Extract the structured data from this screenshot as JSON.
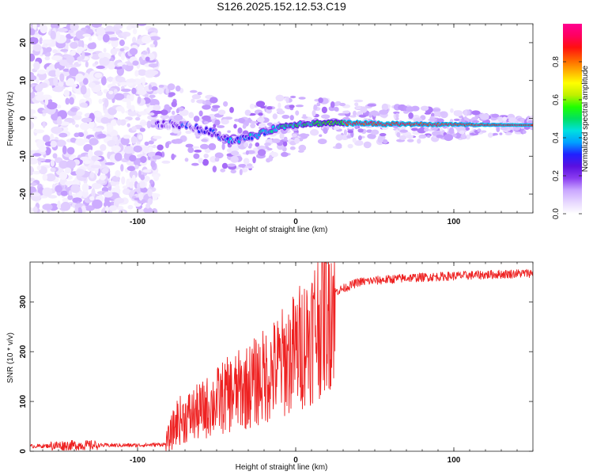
{
  "figure": {
    "title": "S126.2025.152.12.53.C19"
  },
  "chart_data": [
    {
      "type": "heatmap",
      "xlabel": "Height of straight line (km)",
      "ylabel": "Frequency (Hz)",
      "xlim": [
        -168,
        150
      ],
      "ylim": [
        -25,
        25
      ],
      "xticks": [
        -100,
        0,
        100
      ],
      "yticks": [
        -20,
        -10,
        0,
        10,
        20
      ],
      "colorbar": {
        "label": "Normalized spectral amplitude",
        "range": [
          0.0,
          1.0
        ],
        "ticks": [
          0.0,
          0.2,
          0.4,
          0.6,
          0.8
        ],
        "tick_labels": [
          "0.0",
          "0.2",
          "0.4",
          "0.6",
          "0.8"
        ],
        "colormap": [
          "#ffffff",
          "#e6d6ff",
          "#c9a6ff",
          "#8a3cf0",
          "#5a10e0",
          "#2020ff",
          "#00a0ff",
          "#00e0e0",
          "#00e060",
          "#20ff00",
          "#c0f000",
          "#ffff00",
          "#ffb000",
          "#ff6000",
          "#ff1010",
          "#ff0060",
          "#ff0090"
        ]
      },
      "ridge": {
        "description_points": [
          {
            "x": -90,
            "y": -1.5
          },
          {
            "x": -70,
            "y": -1.8
          },
          {
            "x": -55,
            "y": -3.5
          },
          {
            "x": -40,
            "y": -6
          },
          {
            "x": -25,
            "y": -4.5
          },
          {
            "x": -12,
            "y": -2.5
          },
          {
            "x": 0,
            "y": -1.5
          },
          {
            "x": 20,
            "y": -1.2
          },
          {
            "x": 60,
            "y": -1.5
          },
          {
            "x": 150,
            "y": -1.8
          }
        ],
        "peak_amplitude": 0.95
      },
      "noise_region_x": [
        -168,
        -88
      ]
    },
    {
      "type": "line",
      "xlabel": "Height of straight line (km)",
      "ylabel": "SNR (10 * v/v)",
      "xlim": [
        -168,
        150
      ],
      "ylim": [
        0,
        380
      ],
      "xticks": [
        -100,
        0,
        100
      ],
      "yticks": [
        0,
        100,
        200,
        300
      ],
      "series": [
        {
          "color": "#ee2222",
          "trend": [
            {
              "x": -168,
              "y": 10
            },
            {
              "x": -140,
              "y": 12
            },
            {
              "x": -100,
              "y": 12
            },
            {
              "x": -82,
              "y": 14
            },
            {
              "x": -75,
              "y": 60
            },
            {
              "x": -60,
              "y": 80
            },
            {
              "x": -45,
              "y": 110
            },
            {
              "x": -30,
              "y": 130
            },
            {
              "x": -15,
              "y": 160
            },
            {
              "x": 0,
              "y": 200
            },
            {
              "x": 10,
              "y": 240
            },
            {
              "x": 18,
              "y": 280
            },
            {
              "x": 25,
              "y": 320
            },
            {
              "x": 40,
              "y": 340
            },
            {
              "x": 70,
              "y": 348
            },
            {
              "x": 100,
              "y": 352
            },
            {
              "x": 150,
              "y": 358
            }
          ],
          "max_point": {
            "x": 19,
            "y": 378
          }
        }
      ]
    }
  ]
}
